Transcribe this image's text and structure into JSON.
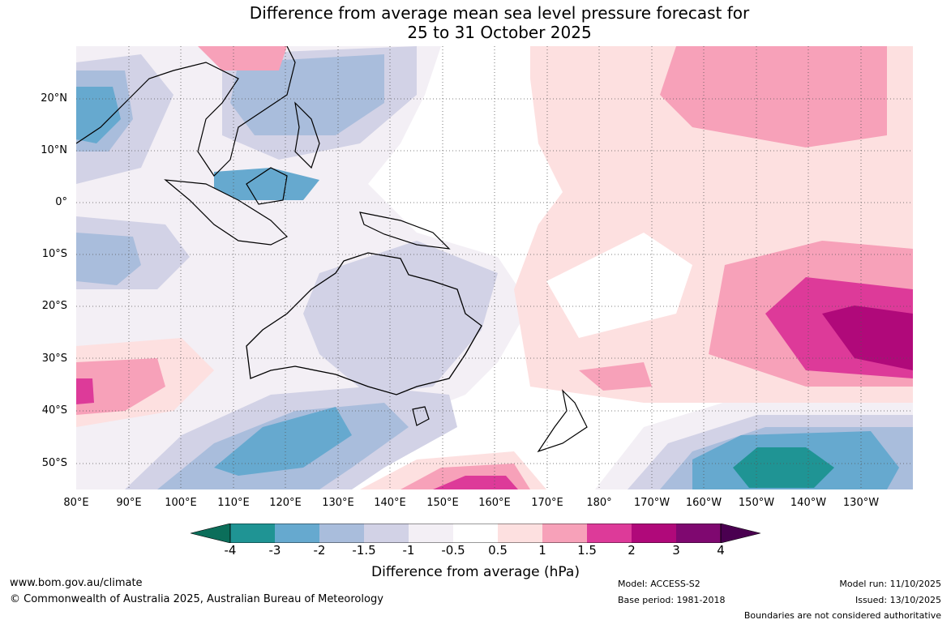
{
  "title": {
    "line1": "Difference from average mean sea level pressure forecast for",
    "line2": "25 to 31 October 2025"
  },
  "map": {
    "lat_labels": [
      "20°N",
      "10°N",
      "0°",
      "10°S",
      "20°S",
      "30°S",
      "40°S",
      "50°S"
    ],
    "lon_labels": [
      "80°E",
      "90°E",
      "100°E",
      "110°E",
      "120°E",
      "130°E",
      "140°E",
      "150°E",
      "160°E",
      "170°E",
      "180°",
      "170°W",
      "160°W",
      "150°W",
      "140°W",
      "130°W"
    ],
    "region": "Australia, Maritime Continent and South-West Pacific"
  },
  "colorbar": {
    "title": "Difference from average (hPa)",
    "ticks": [
      "-4",
      "-3",
      "-2",
      "-1.5",
      "-1",
      "-0.5",
      "0.5",
      "1",
      "1.5",
      "2",
      "3",
      "4"
    ],
    "colors": [
      "#0b6e5a",
      "#1f9494",
      "#66a9cf",
      "#a9bddc",
      "#d2d2e6",
      "#f3eff5",
      "#ffffff",
      "#fde0e0",
      "#f7a1b9",
      "#dd3a99",
      "#b0097a",
      "#7f0870",
      "#4a0050"
    ]
  },
  "footer": {
    "url": "www.bom.gov.au/climate",
    "copyright": "© Commonwealth of Australia 2025, Australian Bureau of Meteorology",
    "model": "Model: ACCESS-S2",
    "base_period": "Base period: 1981-2018",
    "model_run": "Model run: 11/10/2025",
    "issued": "Issued: 13/10/2025",
    "disclaimer": "Boundaries are not considered authoritative"
  }
}
